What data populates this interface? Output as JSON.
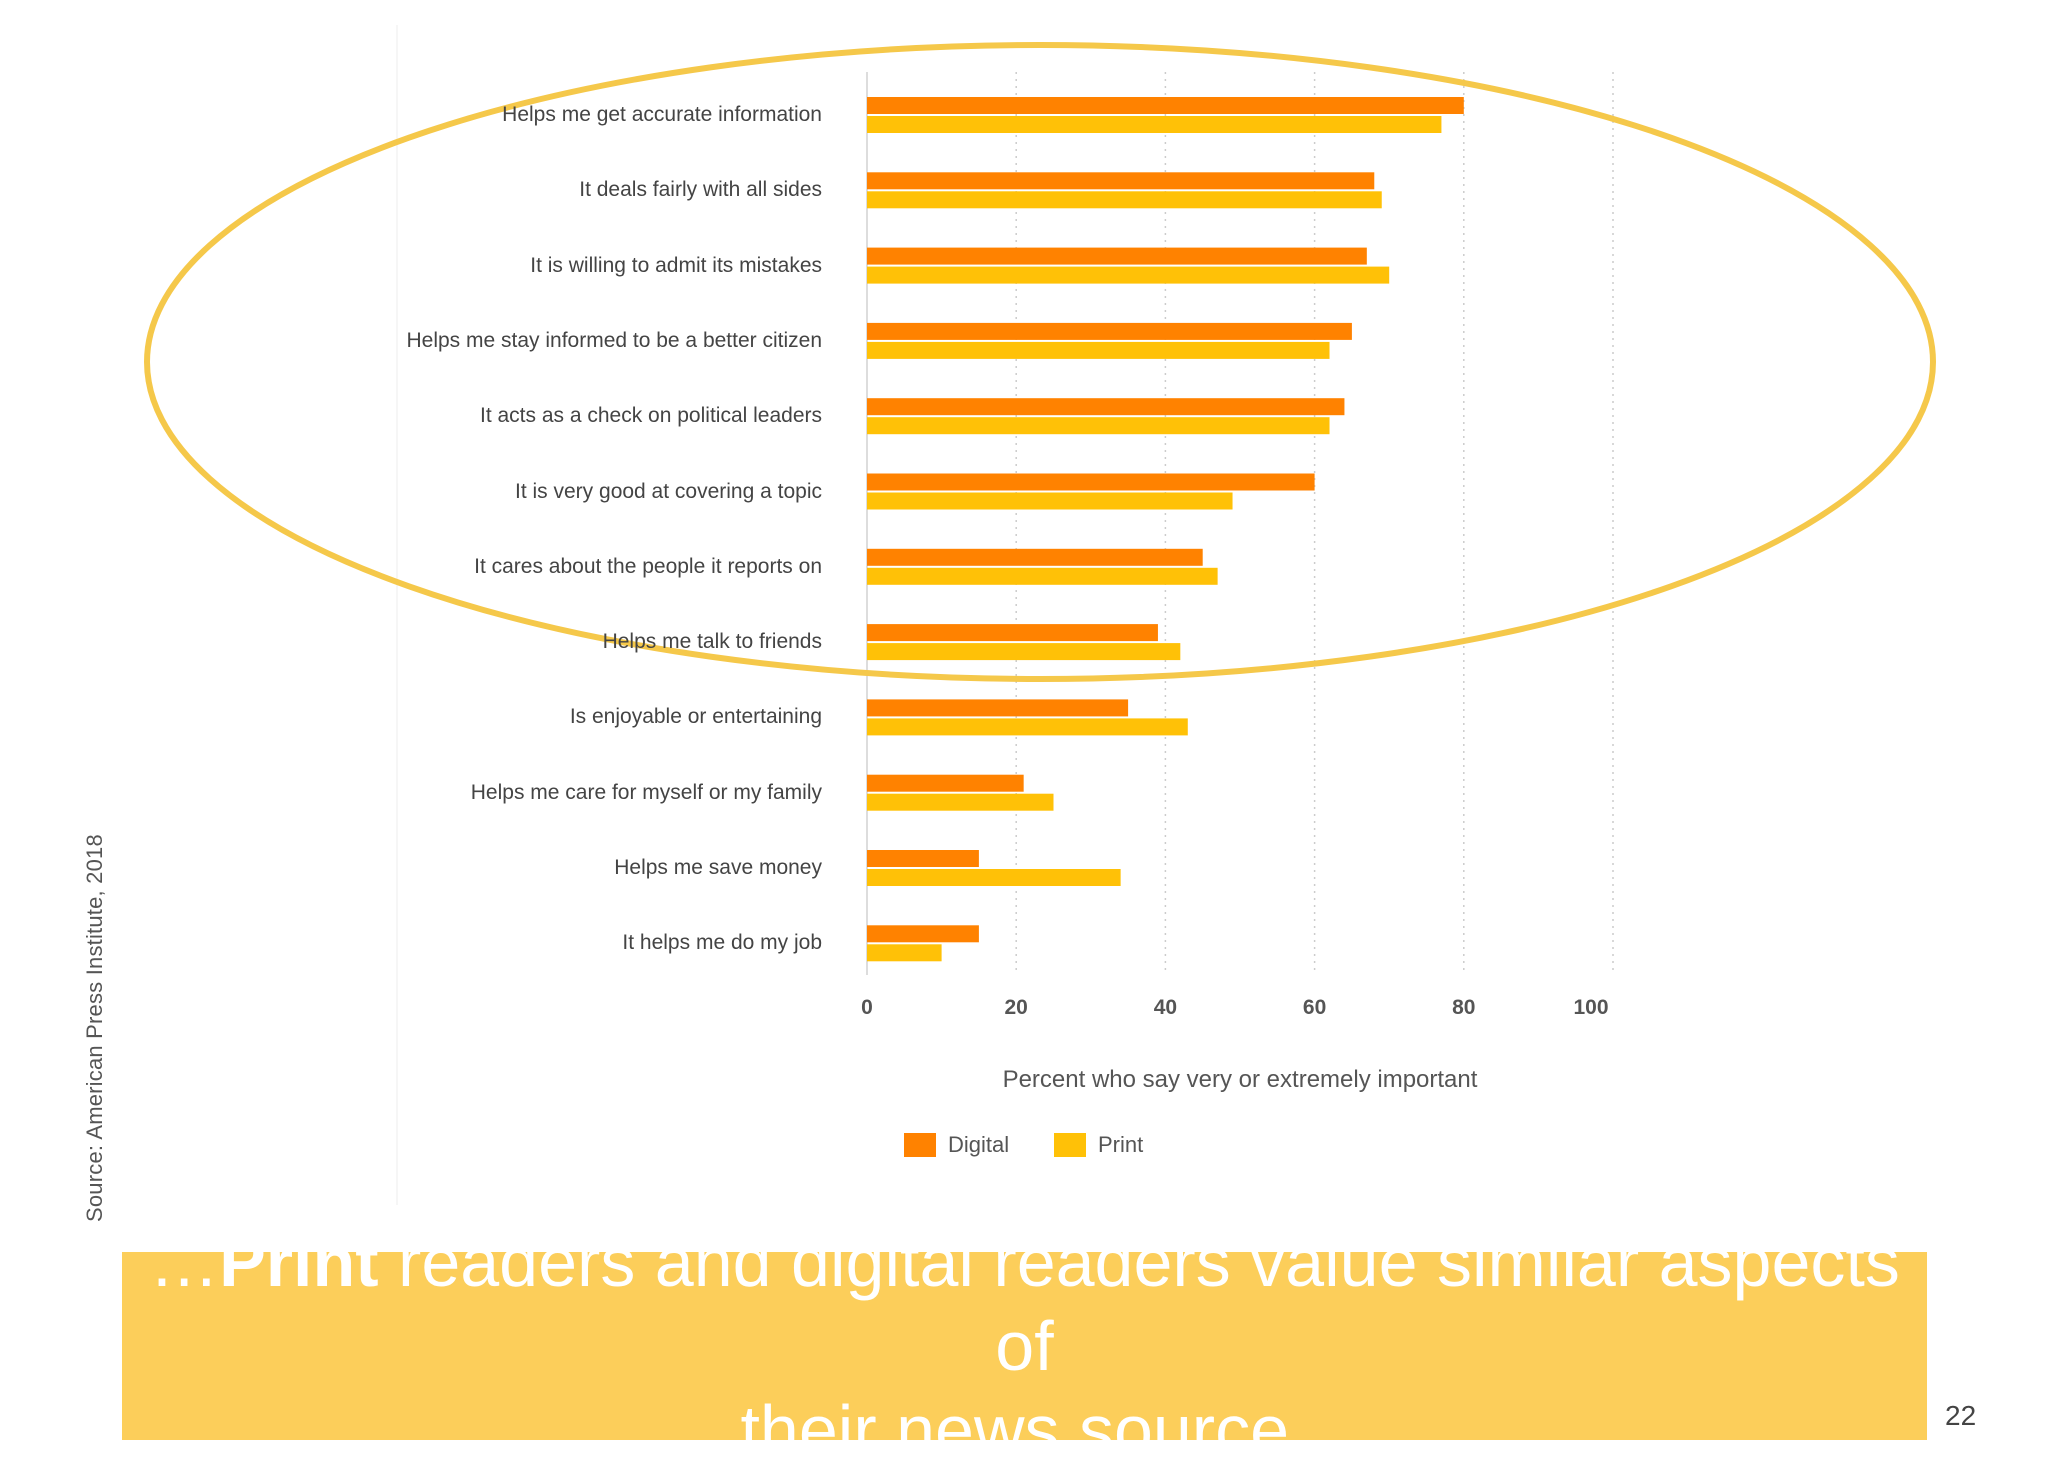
{
  "chart_data": {
    "type": "bar",
    "orientation": "horizontal",
    "categories": [
      "Helps me get accurate information",
      "It deals fairly with all sides",
      "It is willing to admit its mistakes",
      "Helps me stay informed to be a better citizen",
      "It acts as a check on political leaders",
      "It is very good at covering a topic",
      "It cares about the people it reports on",
      "Helps me talk to friends",
      "Is enjoyable or entertaining",
      "Helps me care for myself or my family",
      "Helps me save money",
      "It helps me do my job"
    ],
    "series": [
      {
        "name": "Digital",
        "color": "#ff8200",
        "values": [
          80,
          68,
          67,
          65,
          64,
          60,
          45,
          39,
          35,
          21,
          15,
          15
        ]
      },
      {
        "name": "Print",
        "color": "#ffc107",
        "values": [
          77,
          69,
          70,
          62,
          62,
          49,
          47,
          42,
          43,
          25,
          34,
          10
        ]
      }
    ],
    "xlim": [
      0,
      100
    ],
    "xticks": [
      "0",
      "20",
      "40",
      "60",
      "80",
      "100"
    ],
    "xlabel": "Percent who say very or extremely important",
    "ylabel": "",
    "grid": "vertical dotted",
    "legend": "bottom"
  },
  "highlight_ellipse_color": "#f5c84a",
  "source": "Source: American Press Institute, 2018",
  "banner": {
    "prefix": "…",
    "emphasis": "Print",
    "line1_rest": " readers and digital readers value similar aspects of",
    "line2": "their news source.",
    "background": "#fcce5a"
  },
  "page_number": "22"
}
